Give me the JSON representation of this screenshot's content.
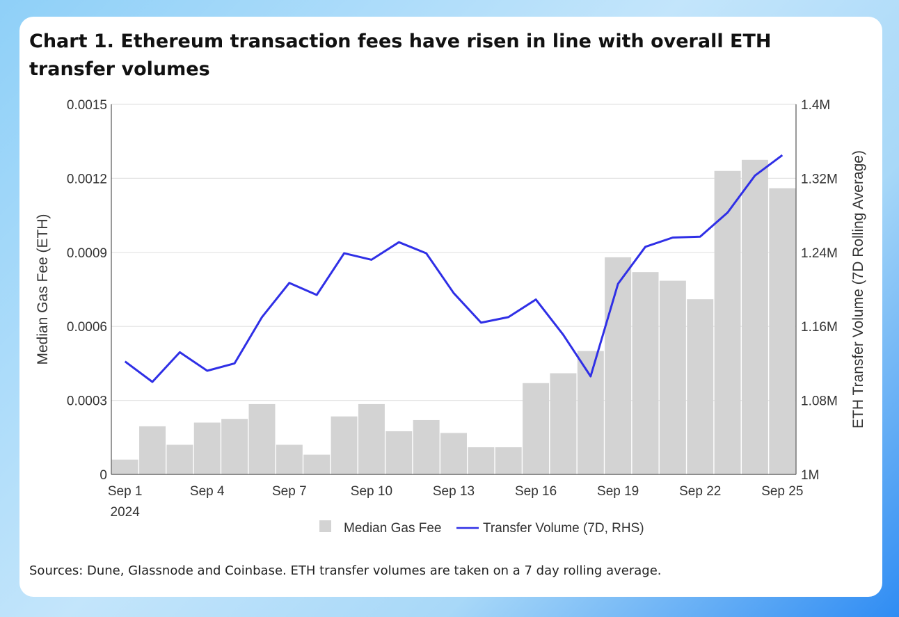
{
  "title": "Chart 1. Ethereum transaction fees have risen in line with overall ETH transfer volumes",
  "source": "Sources: Dune, Glassnode and Coinbase. ETH transfer volumes are taken on a 7 day rolling average.",
  "colors": {
    "bar": "#d3d3d3",
    "line": "#2f2fe6",
    "grid": "#e4e4e4"
  },
  "chart_data": {
    "type": "bar",
    "title": "Chart 1. Ethereum transaction fees have risen in line with overall ETH transfer volumes",
    "x": [
      "Sep 1",
      "Sep 2",
      "Sep 3",
      "Sep 4",
      "Sep 5",
      "Sep 6",
      "Sep 7",
      "Sep 8",
      "Sep 9",
      "Sep 10",
      "Sep 11",
      "Sep 12",
      "Sep 13",
      "Sep 14",
      "Sep 15",
      "Sep 16",
      "Sep 17",
      "Sep 18",
      "Sep 19",
      "Sep 20",
      "Sep 21",
      "Sep 22",
      "Sep 23",
      "Sep 24",
      "Sep 25"
    ],
    "x_tick_labels": [
      {
        "index": 0,
        "label": "Sep 1",
        "sublabel": "2024"
      },
      {
        "index": 3,
        "label": "Sep 4"
      },
      {
        "index": 6,
        "label": "Sep 7"
      },
      {
        "index": 9,
        "label": "Sep 10"
      },
      {
        "index": 12,
        "label": "Sep 13"
      },
      {
        "index": 15,
        "label": "Sep 16"
      },
      {
        "index": 18,
        "label": "Sep 19"
      },
      {
        "index": 21,
        "label": "Sep 22"
      },
      {
        "index": 24,
        "label": "Sep 25"
      }
    ],
    "ylabel": "Median Gas Fee (ETH)",
    "y2label": "ETH Transfer Volume (7D Rolling Average)",
    "ylim": [
      0,
      0.0015
    ],
    "y2lim": [
      1000000,
      1400000
    ],
    "yticks": [
      "0",
      "0.0003",
      "0.0006",
      "0.0009",
      "0.0012",
      "0.0015"
    ],
    "y2ticks": [
      "1M",
      "1.08M",
      "1.16M",
      "1.24M",
      "1.32M",
      "1.4M"
    ],
    "grid": true,
    "legend_position": "bottom",
    "series": [
      {
        "name": "Median Gas Fee",
        "type": "bar",
        "axis": "left",
        "values": [
          6e-05,
          0.000195,
          0.00012,
          0.00021,
          0.000225,
          0.000285,
          0.00012,
          8e-05,
          0.000235,
          0.000285,
          0.000175,
          0.00022,
          0.000168,
          0.00011,
          0.00011,
          0.00037,
          0.00041,
          0.0005,
          0.00088,
          0.00082,
          0.000785,
          0.00071,
          0.00123,
          0.001275,
          0.00116
        ]
      },
      {
        "name": "Transfer Volume (7D, RHS)",
        "type": "line",
        "axis": "right",
        "values": [
          1122000,
          1100000,
          1132000,
          1112000,
          1120000,
          1170000,
          1207000,
          1194000,
          1239000,
          1232000,
          1251000,
          1239000,
          1196000,
          1164000,
          1170000,
          1189000,
          1151000,
          1106000,
          1206000,
          1246000,
          1256000,
          1257000,
          1283000,
          1323000,
          1345000
        ]
      }
    ]
  }
}
